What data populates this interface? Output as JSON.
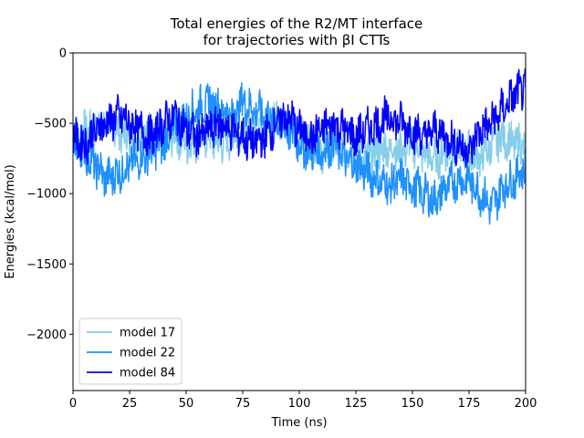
{
  "chart_data": {
    "type": "line",
    "title_line1": "Total energies of the R2/MT interface",
    "title_line2": "for trajectories with βI CTTs",
    "xlabel": "Time (ns)",
    "ylabel": "Energies (kcal/mol)",
    "xlim": [
      0,
      200
    ],
    "ylim": [
      -2400,
      0
    ],
    "xticks": [
      0,
      25,
      50,
      75,
      100,
      125,
      150,
      175,
      200
    ],
    "xtick_labels": [
      "0",
      "25",
      "50",
      "75",
      "100",
      "125",
      "150",
      "175",
      "200"
    ],
    "yticks": [
      0,
      -500,
      -1000,
      -1500,
      -2000
    ],
    "ytick_labels": [
      "0",
      "−500",
      "−1000",
      "−1500",
      "−2000"
    ],
    "grid": false,
    "legend_position": "lower-left",
    "series": [
      {
        "name": "model 17",
        "color": "#87CEEB",
        "x": [
          0,
          5,
          10,
          15,
          20,
          25,
          30,
          35,
          40,
          45,
          50,
          55,
          60,
          65,
          70,
          75,
          80,
          85,
          90,
          95,
          100,
          105,
          110,
          115,
          120,
          125,
          130,
          135,
          140,
          145,
          150,
          155,
          160,
          165,
          170,
          175,
          180,
          185,
          190,
          195,
          200
        ],
        "y": [
          -600,
          -550,
          -520,
          -500,
          -550,
          -600,
          -580,
          -550,
          -600,
          -580,
          -650,
          -620,
          -600,
          -650,
          -600,
          -550,
          -520,
          -500,
          -450,
          -500,
          -600,
          -650,
          -700,
          -650,
          -700,
          -720,
          -750,
          -700,
          -680,
          -700,
          -650,
          -720,
          -750,
          -700,
          -680,
          -700,
          -750,
          -650,
          -600,
          -650,
          -650
        ]
      },
      {
        "name": "model 22",
        "color": "#1E90FF",
        "x": [
          0,
          5,
          10,
          15,
          20,
          25,
          30,
          35,
          40,
          45,
          50,
          55,
          60,
          65,
          70,
          75,
          80,
          85,
          90,
          95,
          100,
          105,
          110,
          115,
          120,
          125,
          130,
          135,
          140,
          145,
          150,
          155,
          160,
          165,
          170,
          175,
          180,
          185,
          190,
          195,
          200
        ],
        "y": [
          -650,
          -700,
          -800,
          -900,
          -850,
          -800,
          -750,
          -700,
          -650,
          -550,
          -450,
          -400,
          -350,
          -400,
          -450,
          -350,
          -400,
          -450,
          -500,
          -550,
          -650,
          -700,
          -700,
          -650,
          -750,
          -800,
          -850,
          -900,
          -950,
          -900,
          -950,
          -1000,
          -1050,
          -950,
          -900,
          -900,
          -1000,
          -1100,
          -950,
          -900,
          -800
        ]
      },
      {
        "name": "model 84",
        "color": "#0000FF",
        "x": [
          0,
          5,
          10,
          15,
          20,
          25,
          30,
          35,
          40,
          45,
          50,
          55,
          60,
          65,
          70,
          75,
          80,
          85,
          90,
          95,
          100,
          105,
          110,
          115,
          120,
          125,
          130,
          135,
          140,
          145,
          150,
          155,
          160,
          165,
          170,
          175,
          180,
          185,
          190,
          195,
          200
        ],
        "y": [
          -600,
          -650,
          -550,
          -500,
          -450,
          -500,
          -550,
          -600,
          -500,
          -450,
          -550,
          -600,
          -550,
          -500,
          -550,
          -600,
          -650,
          -600,
          -500,
          -450,
          -550,
          -600,
          -550,
          -500,
          -550,
          -600,
          -550,
          -500,
          -450,
          -500,
          -550,
          -600,
          -550,
          -600,
          -650,
          -700,
          -550,
          -500,
          -400,
          -300,
          -250
        ]
      }
    ]
  }
}
